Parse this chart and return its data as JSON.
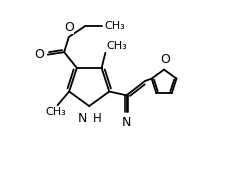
{
  "background_color": "#ffffff",
  "line_color": "#000000",
  "line_width": 1.3,
  "font_size": 8.5,
  "xlim": [
    0,
    10
  ],
  "ylim": [
    0,
    8
  ]
}
